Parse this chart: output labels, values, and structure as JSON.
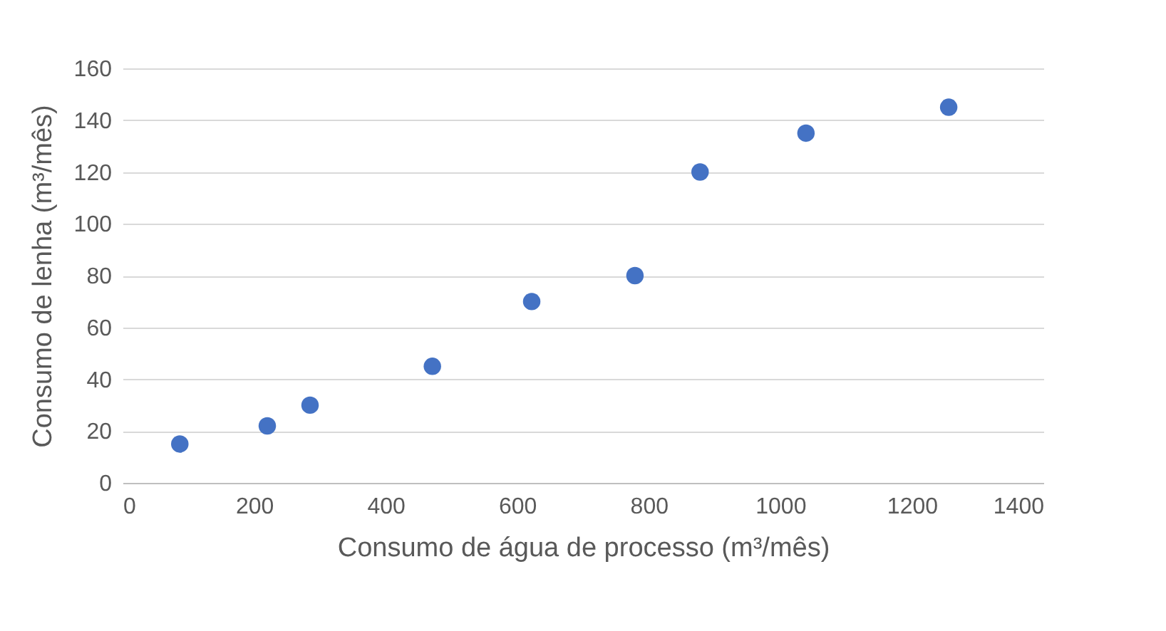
{
  "chart_data": {
    "type": "scatter",
    "xlabel": "Consumo de água de processo (m³/mês)",
    "ylabel": "Consumo de lenha (m³/mês)",
    "x": [
      87,
      220,
      285,
      471,
      622,
      779,
      878,
      1039,
      1256
    ],
    "series": [
      {
        "color": "#4472c4",
        "values": [
          15,
          22,
          30,
          45,
          70,
          80,
          120,
          135,
          145
        ]
      }
    ],
    "xlim": [
      0,
      1400
    ],
    "xticks": [
      0,
      200,
      400,
      600,
      800,
      1000,
      1200,
      1400
    ],
    "ylim": [
      0,
      160
    ],
    "yticks": [
      0,
      20,
      40,
      60,
      80,
      100,
      120,
      140,
      160
    ],
    "grid": "y"
  }
}
